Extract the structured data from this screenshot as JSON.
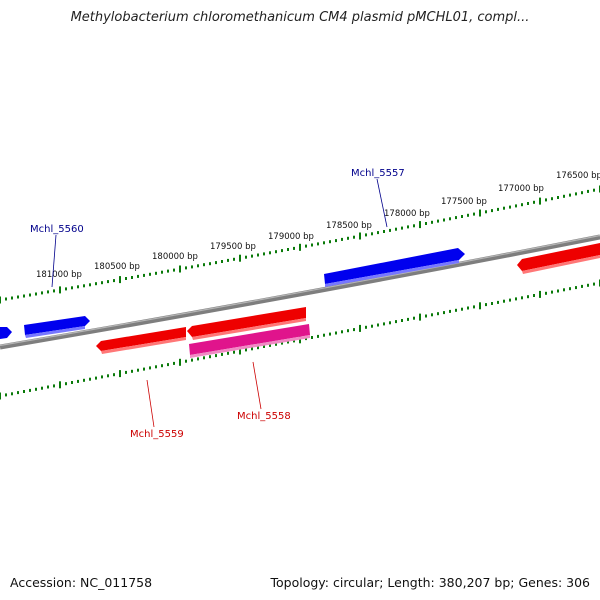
{
  "title": "Methylobacterium chloromethanicum CM4 plasmid pMCHL01, compl...",
  "footer": {
    "accession": "Accession: NC_011758",
    "topology": "Topology: circular; Length: 380,207 bp; Genes: 306"
  },
  "colors": {
    "backbone": "#8a8a8a",
    "ticks": "#0a7a0a",
    "forward_gene": "#0000ee",
    "reverse_gene": "#ee0000",
    "pink_gene": "#e0148c",
    "label_forward": "#00008b",
    "label_reverse": "#cc0000"
  },
  "ruler": {
    "outer_labels": [
      "181000 bp",
      "180500 bp",
      "180000 bp",
      "179500 bp",
      "179000 bp",
      "178500 bp",
      "178000 bp",
      "177500 bp",
      "177000 bp",
      "176500 bp"
    ]
  },
  "gene_labels": [
    {
      "name": "Mchl_5560",
      "strand": "forward"
    },
    {
      "name": "Mchl_5557",
      "strand": "forward"
    },
    {
      "name": "Mchl_5559",
      "strand": "reverse"
    },
    {
      "name": "Mchl_5558",
      "strand": "reverse"
    }
  ]
}
